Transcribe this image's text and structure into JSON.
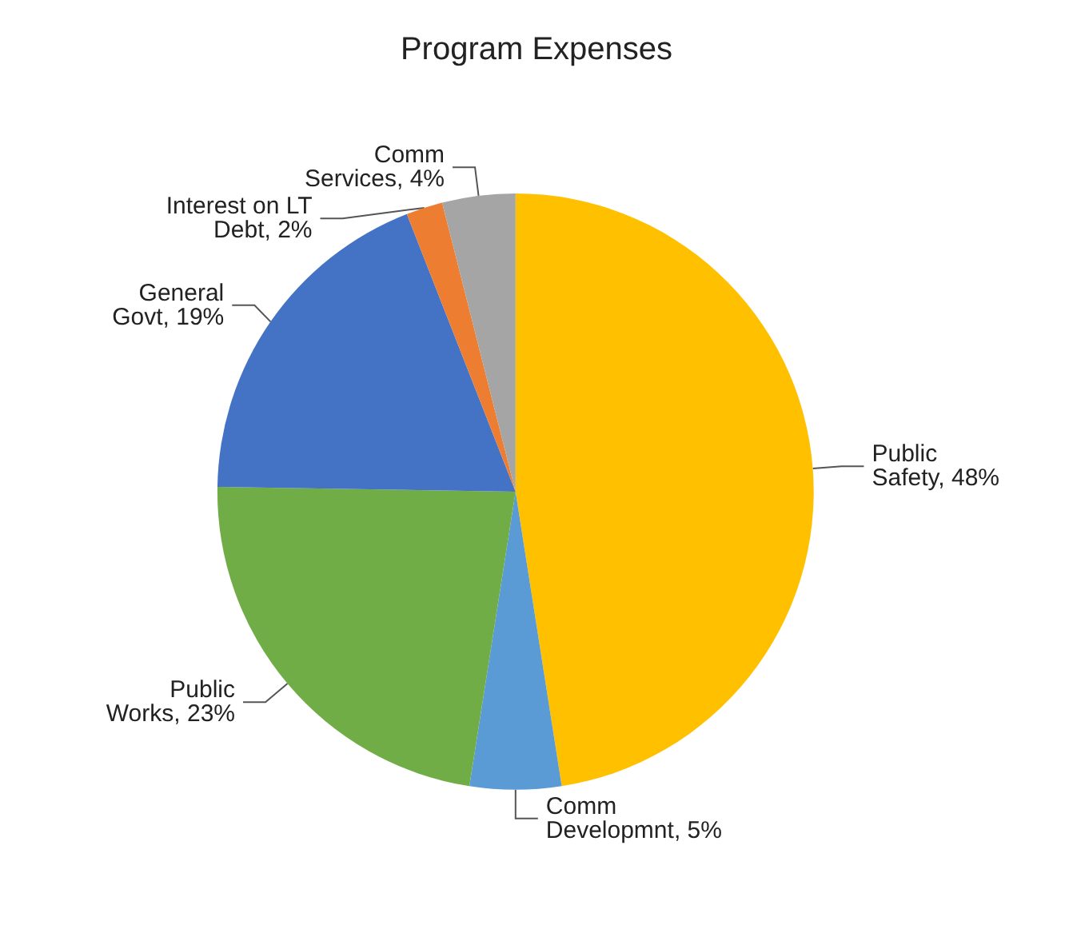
{
  "chart_data": {
    "type": "pie",
    "title": "Program Expenses",
    "categories": [
      "Public Safety",
      "Comm Developmnt",
      "Public Works",
      "General Govt",
      "Interest on LT Debt",
      "Comm Services"
    ],
    "values": [
      48,
      5,
      23,
      19,
      2,
      4
    ],
    "value_labels": [
      "48%",
      "5%",
      "23%",
      "19%",
      "2%",
      "4%"
    ],
    "colors": [
      "#ffc000",
      "#5b9bd5",
      "#70ad47",
      "#4472c4",
      "#ed7d31",
      "#a5a5a5"
    ],
    "legend": false
  }
}
